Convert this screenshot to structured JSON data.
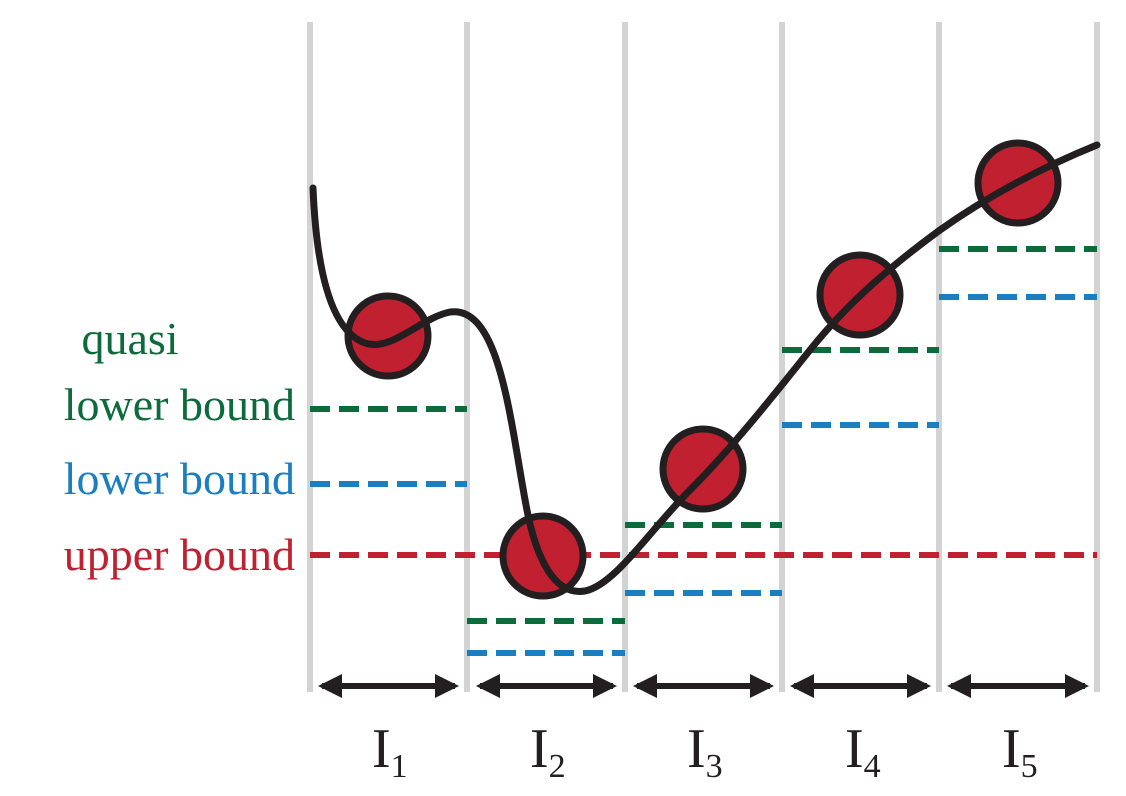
{
  "colors": {
    "quasi_lower_bound": "#0b6b3a",
    "lower_bound": "#1a7fc1",
    "upper_bound": "#c0202f",
    "curve": "#231f20",
    "points": "#c0202f",
    "gridlines": "#d3d3d3"
  },
  "legend": {
    "quasi_line1": "quasi",
    "quasi_line2": "lower bound",
    "lower_bound": "lower bound",
    "upper_bound": "upper bound"
  },
  "intervals": [
    {
      "base": "I",
      "sub": "1"
    },
    {
      "base": "I",
      "sub": "2"
    },
    {
      "base": "I",
      "sub": "3"
    },
    {
      "base": "I",
      "sub": "4"
    },
    {
      "base": "I",
      "sub": "5"
    }
  ]
}
